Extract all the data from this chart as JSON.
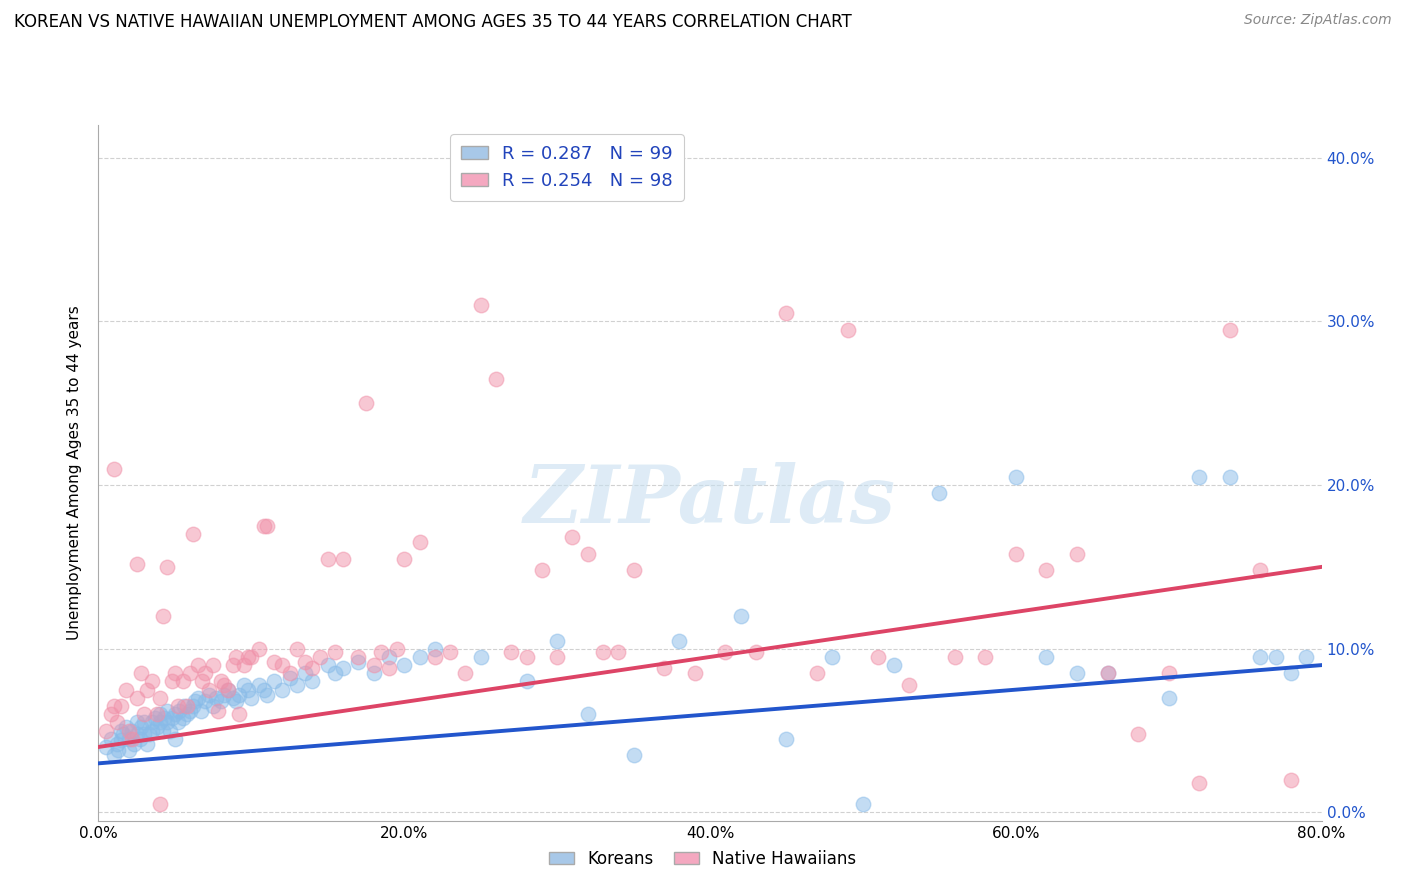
{
  "title": "KOREAN VS NATIVE HAWAIIAN UNEMPLOYMENT AMONG AGES 35 TO 44 YEARS CORRELATION CHART",
  "source": "Source: ZipAtlas.com",
  "ylabel": "Unemployment Among Ages 35 to 44 years",
  "xlabel_ticks": [
    "0.0%",
    "20.0%",
    "40.0%",
    "60.0%",
    "80.0%"
  ],
  "ytick_labels_right": [
    "0.0%",
    "10.0%",
    "20.0%",
    "30.0%",
    "40.0%"
  ],
  "xlim": [
    0.0,
    0.8
  ],
  "ylim": [
    -0.005,
    0.42
  ],
  "koreans_R": 0.287,
  "koreans_N": 99,
  "hawaiians_R": 0.254,
  "hawaiians_N": 98,
  "korean_color": "#a8c8e8",
  "hawaiian_color": "#f4a8c0",
  "korean_scatter_color": "#88bbe8",
  "hawaiian_scatter_color": "#f090a8",
  "trend_korean_color": "#2255cc",
  "trend_hawaiian_color": "#dd4466",
  "legend_text_color": "#2244bb",
  "watermark_color": "#c8dff0",
  "background_color": "#ffffff",
  "grid_color": "#cccccc",
  "title_fontsize": 12,
  "source_fontsize": 10,
  "korean_trend_start": 0.03,
  "korean_trend_end": 0.09,
  "hawaiian_trend_start": 0.04,
  "hawaiian_trend_end": 0.15,
  "korean_x": [
    0.005,
    0.008,
    0.01,
    0.012,
    0.013,
    0.015,
    0.015,
    0.016,
    0.018,
    0.02,
    0.02,
    0.022,
    0.023,
    0.025,
    0.025,
    0.027,
    0.028,
    0.03,
    0.03,
    0.032,
    0.033,
    0.035,
    0.035,
    0.037,
    0.038,
    0.04,
    0.04,
    0.042,
    0.043,
    0.045,
    0.045,
    0.047,
    0.048,
    0.05,
    0.05,
    0.052,
    0.053,
    0.055,
    0.056,
    0.058,
    0.06,
    0.062,
    0.063,
    0.065,
    0.067,
    0.07,
    0.072,
    0.075,
    0.077,
    0.08,
    0.082,
    0.085,
    0.088,
    0.09,
    0.092,
    0.095,
    0.098,
    0.1,
    0.105,
    0.108,
    0.11,
    0.115,
    0.12,
    0.125,
    0.13,
    0.135,
    0.14,
    0.15,
    0.155,
    0.16,
    0.17,
    0.18,
    0.19,
    0.2,
    0.21,
    0.22,
    0.25,
    0.28,
    0.3,
    0.32,
    0.35,
    0.38,
    0.42,
    0.45,
    0.48,
    0.52,
    0.55,
    0.6,
    0.62,
    0.64,
    0.66,
    0.7,
    0.72,
    0.74,
    0.76,
    0.77,
    0.78,
    0.79,
    0.5
  ],
  "korean_y": [
    0.04,
    0.045,
    0.035,
    0.042,
    0.038,
    0.05,
    0.044,
    0.048,
    0.052,
    0.038,
    0.045,
    0.05,
    0.042,
    0.055,
    0.048,
    0.045,
    0.052,
    0.048,
    0.055,
    0.042,
    0.048,
    0.055,
    0.05,
    0.058,
    0.052,
    0.055,
    0.06,
    0.05,
    0.058,
    0.055,
    0.062,
    0.05,
    0.058,
    0.045,
    0.06,
    0.055,
    0.062,
    0.058,
    0.065,
    0.06,
    0.062,
    0.065,
    0.068,
    0.07,
    0.062,
    0.068,
    0.072,
    0.065,
    0.07,
    0.068,
    0.072,
    0.075,
    0.07,
    0.068,
    0.072,
    0.078,
    0.075,
    0.07,
    0.078,
    0.075,
    0.072,
    0.08,
    0.075,
    0.082,
    0.078,
    0.085,
    0.08,
    0.09,
    0.085,
    0.088,
    0.092,
    0.085,
    0.095,
    0.09,
    0.095,
    0.1,
    0.095,
    0.08,
    0.105,
    0.06,
    0.035,
    0.105,
    0.12,
    0.045,
    0.095,
    0.09,
    0.195,
    0.205,
    0.095,
    0.085,
    0.085,
    0.07,
    0.205,
    0.205,
    0.095,
    0.095,
    0.085,
    0.095,
    0.005
  ],
  "hawaiian_x": [
    0.005,
    0.008,
    0.01,
    0.012,
    0.015,
    0.018,
    0.02,
    0.022,
    0.025,
    0.028,
    0.03,
    0.032,
    0.035,
    0.038,
    0.04,
    0.042,
    0.045,
    0.048,
    0.05,
    0.052,
    0.055,
    0.058,
    0.06,
    0.062,
    0.065,
    0.068,
    0.07,
    0.072,
    0.075,
    0.078,
    0.08,
    0.082,
    0.085,
    0.088,
    0.09,
    0.092,
    0.095,
    0.098,
    0.1,
    0.105,
    0.108,
    0.11,
    0.115,
    0.12,
    0.125,
    0.13,
    0.135,
    0.14,
    0.145,
    0.15,
    0.155,
    0.16,
    0.17,
    0.175,
    0.18,
    0.185,
    0.19,
    0.195,
    0.2,
    0.21,
    0.22,
    0.23,
    0.24,
    0.25,
    0.26,
    0.27,
    0.28,
    0.29,
    0.3,
    0.31,
    0.32,
    0.33,
    0.34,
    0.35,
    0.37,
    0.39,
    0.41,
    0.43,
    0.45,
    0.47,
    0.49,
    0.51,
    0.53,
    0.56,
    0.58,
    0.6,
    0.62,
    0.64,
    0.66,
    0.68,
    0.7,
    0.72,
    0.74,
    0.76,
    0.78,
    0.01,
    0.025,
    0.04
  ],
  "hawaiian_y": [
    0.05,
    0.06,
    0.065,
    0.055,
    0.065,
    0.075,
    0.05,
    0.045,
    0.07,
    0.085,
    0.06,
    0.075,
    0.08,
    0.06,
    0.07,
    0.12,
    0.15,
    0.08,
    0.085,
    0.065,
    0.08,
    0.065,
    0.085,
    0.17,
    0.09,
    0.08,
    0.085,
    0.075,
    0.09,
    0.062,
    0.08,
    0.078,
    0.075,
    0.09,
    0.095,
    0.06,
    0.09,
    0.095,
    0.095,
    0.1,
    0.175,
    0.175,
    0.092,
    0.09,
    0.085,
    0.1,
    0.092,
    0.088,
    0.095,
    0.155,
    0.098,
    0.155,
    0.095,
    0.25,
    0.09,
    0.098,
    0.088,
    0.1,
    0.155,
    0.165,
    0.095,
    0.098,
    0.085,
    0.31,
    0.265,
    0.098,
    0.095,
    0.148,
    0.095,
    0.168,
    0.158,
    0.098,
    0.098,
    0.148,
    0.088,
    0.085,
    0.098,
    0.098,
    0.305,
    0.085,
    0.295,
    0.095,
    0.078,
    0.095,
    0.095,
    0.158,
    0.148,
    0.158,
    0.085,
    0.048,
    0.085,
    0.018,
    0.295,
    0.148,
    0.02,
    0.21,
    0.152,
    0.005
  ]
}
